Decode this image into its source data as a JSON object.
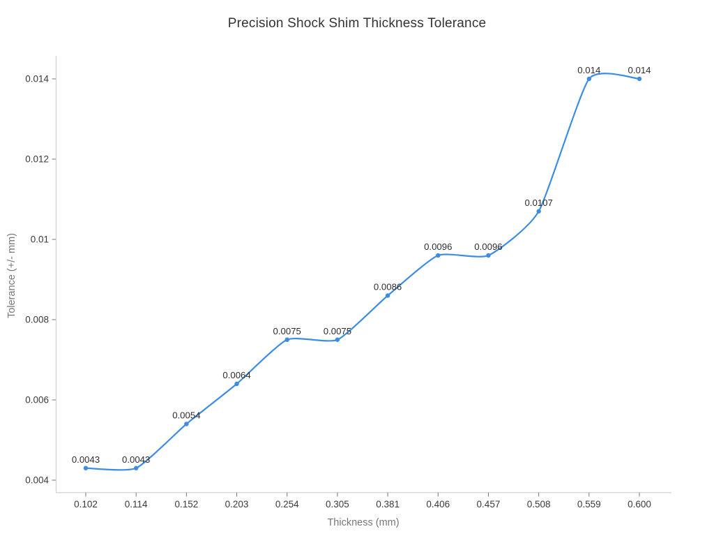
{
  "chart_data": {
    "type": "line",
    "title": "Precision Shock Shim Thickness Tolerance",
    "xlabel": "Thickness (mm)",
    "ylabel": "Tolerance (+/- mm)",
    "line_shape": "spline",
    "markers": true,
    "grid": false,
    "legend": false,
    "x_axis_type": "category",
    "background_color": "#ffffff",
    "line_color": "#3d8ce4",
    "marker_color": "#3d8ce4",
    "categories": [
      "0.102",
      "0.114",
      "0.152",
      "0.203",
      "0.254",
      "0.305",
      "0.381",
      "0.406",
      "0.457",
      "0.508",
      "0.559",
      "0.600"
    ],
    "values": [
      0.0043,
      0.0043,
      0.0054,
      0.0064,
      0.0075,
      0.0075,
      0.0086,
      0.0096,
      0.0096,
      0.0107,
      0.014,
      0.014
    ],
    "point_labels": [
      "0.0043",
      "0.0043",
      "0.0054",
      "0.0064",
      "0.0075",
      "0.0075",
      "0.0086",
      "0.0096",
      "0.0096",
      "0.0107",
      "0.014",
      "0.014"
    ],
    "y_ticks": [
      0.004,
      0.006,
      0.008,
      0.01,
      0.012,
      0.014
    ],
    "y_tick_labels": [
      "0.004",
      "0.006",
      "0.008",
      "0.01",
      "0.012",
      "0.014"
    ],
    "ylim": [
      0.0037,
      0.01457
    ]
  }
}
